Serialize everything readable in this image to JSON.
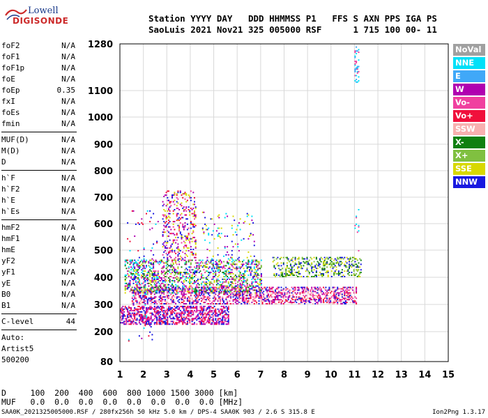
{
  "logo": {
    "line1": "Lowell",
    "line2": "DIGISONDE"
  },
  "header": {
    "line1": "Station YYYY DAY   DDD HHMMSS P1   FFS S AXN PPS IGA PS",
    "line2": "SaoLuis 2021 Nov21 325 005000 RSF      1 715 100 00- 11"
  },
  "params": {
    "group1": [
      {
        "k": "foF2",
        "v": "N/A"
      },
      {
        "k": "foF1",
        "v": "N/A"
      },
      {
        "k": "foF1p",
        "v": "N/A"
      },
      {
        "k": "foE",
        "v": "N/A"
      },
      {
        "k": "foEp",
        "v": "0.35"
      },
      {
        "k": "fxI",
        "v": "N/A"
      },
      {
        "k": "foEs",
        "v": "N/A"
      },
      {
        "k": "fmin",
        "v": "N/A"
      }
    ],
    "group2": [
      {
        "k": "MUF(D)",
        "v": "N/A"
      },
      {
        "k": "M(D)",
        "v": "N/A"
      },
      {
        "k": "D",
        "v": "N/A"
      }
    ],
    "group3": [
      {
        "k": "h`F",
        "v": "N/A"
      },
      {
        "k": "h`F2",
        "v": "N/A"
      },
      {
        "k": "h`E",
        "v": "N/A"
      },
      {
        "k": "h`Es",
        "v": "N/A"
      }
    ],
    "group4": [
      {
        "k": "hmF2",
        "v": "N/A"
      },
      {
        "k": "hmF1",
        "v": "N/A"
      },
      {
        "k": "hmE",
        "v": "N/A"
      },
      {
        "k": "yF2",
        "v": "N/A"
      },
      {
        "k": "yF1",
        "v": "N/A"
      },
      {
        "k": "yE",
        "v": "N/A"
      },
      {
        "k": "B0",
        "v": "N/A"
      },
      {
        "k": "B1",
        "v": "N/A"
      }
    ],
    "clevel": {
      "k": "C-level",
      "v": "44"
    },
    "auto": [
      "Auto:",
      "Artist5",
      "500200"
    ]
  },
  "legend": [
    {
      "label": "NoVal",
      "color": "#a0a0a0"
    },
    {
      "label": "NNE",
      "color": "#00e0f8"
    },
    {
      "label": "E",
      "color": "#40a8f8"
    },
    {
      "label": "W",
      "color": "#b000b0"
    },
    {
      "label": "Vo-",
      "color": "#f040a0"
    },
    {
      "label": "Vo+",
      "color": "#f0103c"
    },
    {
      "label": "SSW",
      "color": "#f8b0b0"
    },
    {
      "label": "X-",
      "color": "#108010"
    },
    {
      "label": "X+",
      "color": "#80c040"
    },
    {
      "label": "SSE",
      "color": "#d8d800"
    },
    {
      "label": "NNW",
      "color": "#1818e0"
    }
  ],
  "distance_table": {
    "line1": "D     100  200  400  600  800 1000 1500 3000 [km]",
    "line2": "MUF   0.0  0.0  0.0  0.0  0.0  0.0  0.0  0.0 [MHz]"
  },
  "footer": {
    "left": "SAA0K_2021325005000.RSF / 280fx256h 50 kHz 5.0 km / DPS-4 SAA0K 903 / 2.6 S 315.8 E",
    "right": "Ion2Png 1.3.17"
  },
  "chart_data": {
    "type": "scatter",
    "xlim": [
      1,
      15
    ],
    "ylim": [
      80,
      1280
    ],
    "x_ticks": [
      1,
      2,
      3,
      4,
      5,
      6,
      7,
      8,
      9,
      10,
      11,
      12,
      13,
      14,
      15
    ],
    "y_ticks": [
      80,
      200,
      300,
      400,
      500,
      600,
      700,
      800,
      900,
      1000,
      1100,
      1280
    ],
    "grid": true,
    "clusters": [
      {
        "x": [
          1.0,
          5.6
        ],
        "y": [
          225,
          290
        ],
        "density": 1.0,
        "colors": [
          "#f0103c",
          "#b000b0",
          "#1818e0",
          "#f040a0"
        ]
      },
      {
        "x": [
          1.5,
          11.1
        ],
        "y": [
          300,
          360
        ],
        "density": 0.85,
        "colors": [
          "#f0103c",
          "#f040a0",
          "#b000b0",
          "#f8b0b0",
          "#1818e0"
        ]
      },
      {
        "x": [
          1.2,
          7.0
        ],
        "y": [
          340,
          460
        ],
        "density": 0.7,
        "colors": [
          "#1818e0",
          "#b000b0",
          "#f040a0",
          "#108010",
          "#80c040",
          "#d8d800",
          "#00e0f8"
        ]
      },
      {
        "x": [
          7.5,
          11.3
        ],
        "y": [
          400,
          470
        ],
        "density": 0.55,
        "colors": [
          "#d8d800",
          "#80c040",
          "#108010",
          "#1818e0"
        ]
      },
      {
        "x": [
          2.8,
          4.2
        ],
        "y": [
          460,
          720
        ],
        "density": 0.4,
        "colors": [
          "#1818e0",
          "#b000b0",
          "#f040a0",
          "#f0103c",
          "#d8d800"
        ]
      },
      {
        "x": [
          4.5,
          6.8
        ],
        "y": [
          460,
          640
        ],
        "density": 0.1,
        "colors": [
          "#1818e0",
          "#00e0f8",
          "#b000b0",
          "#d8d800"
        ]
      },
      {
        "x": [
          1.3,
          2.6
        ],
        "y": [
          160,
          650
        ],
        "density": 0.06,
        "colors": [
          "#1818e0",
          "#b000b0",
          "#f0103c",
          "#00e0f8"
        ]
      },
      {
        "x": [
          11.0,
          11.2
        ],
        "y": [
          1130,
          1270
        ],
        "density": 0.7,
        "colors": [
          "#00e0f8",
          "#40a8f8",
          "#f040a0"
        ]
      },
      {
        "x": [
          11.0,
          11.2
        ],
        "y": [
          480,
          650
        ],
        "density": 0.15,
        "colors": [
          "#f040a0",
          "#00e0f8"
        ]
      }
    ]
  }
}
